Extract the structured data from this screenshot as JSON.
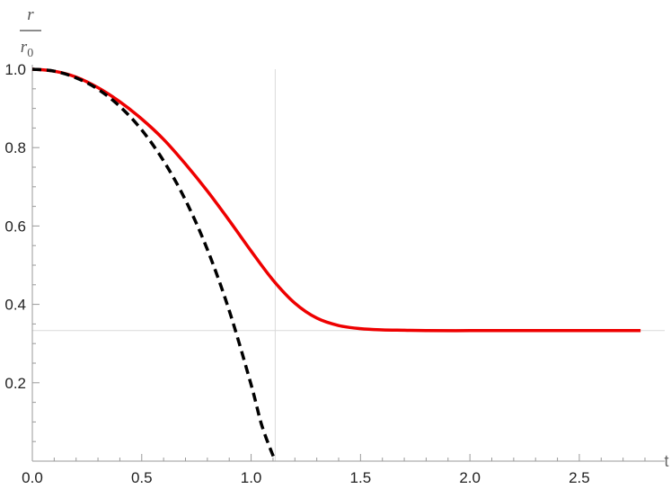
{
  "chart_data": {
    "type": "line",
    "xlabel": "t",
    "ylabel": {
      "numerator": "r",
      "denominator_base": "r",
      "denominator_sub": "0"
    },
    "xlim": [
      0.0,
      2.8
    ],
    "ylim": [
      0.0,
      1.0
    ],
    "x_ticks": [
      {
        "value": 0.0,
        "label": "0.0"
      },
      {
        "value": 0.5,
        "label": "0.5"
      },
      {
        "value": 1.0,
        "label": "1.0"
      },
      {
        "value": 1.5,
        "label": "1.5"
      },
      {
        "value": 2.0,
        "label": "2.0"
      },
      {
        "value": 2.5,
        "label": "2.5"
      }
    ],
    "y_ticks": [
      {
        "value": 0.2,
        "label": "0.2"
      },
      {
        "value": 0.4,
        "label": "0.4"
      },
      {
        "value": 0.6,
        "label": "0.6"
      },
      {
        "value": 0.8,
        "label": "0.8"
      },
      {
        "value": 1.0,
        "label": "1.0"
      }
    ],
    "reference_lines": {
      "vertical_x": 1.11,
      "horizontal_y": 0.333
    },
    "grid": false,
    "series": [
      {
        "style": "solid",
        "color": "#ee0000",
        "x": [
          0.0,
          0.1,
          0.2,
          0.3,
          0.4,
          0.5,
          0.6,
          0.7,
          0.8,
          0.9,
          1.0,
          1.1,
          1.2,
          1.3,
          1.4,
          1.5,
          1.6,
          1.7,
          1.8,
          2.0,
          2.2,
          2.4,
          2.6,
          2.78
        ],
        "y": [
          1.0,
          0.995,
          0.98,
          0.953,
          0.917,
          0.873,
          0.821,
          0.758,
          0.689,
          0.614,
          0.536,
          0.462,
          0.403,
          0.365,
          0.346,
          0.338,
          0.335,
          0.334,
          0.333,
          0.333,
          0.333,
          0.333,
          0.333,
          0.333
        ]
      },
      {
        "style": "dashed",
        "color": "#000000",
        "x": [
          0.0,
          0.1,
          0.2,
          0.3,
          0.4,
          0.5,
          0.6,
          0.7,
          0.8,
          0.9,
          1.0,
          1.05,
          1.11
        ],
        "y": [
          1.0,
          0.995,
          0.978,
          0.949,
          0.905,
          0.845,
          0.766,
          0.666,
          0.54,
          0.384,
          0.195,
          0.089,
          0.0
        ]
      }
    ]
  }
}
